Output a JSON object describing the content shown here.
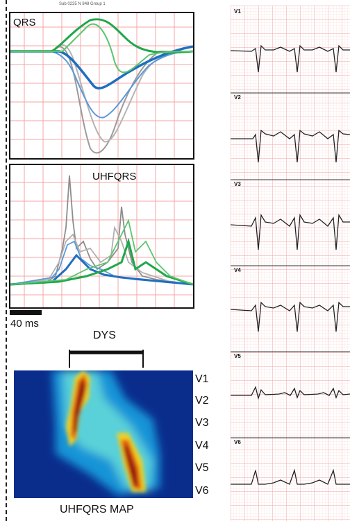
{
  "header": {
    "subject_text": "Sub 0235 N 848 Group 1"
  },
  "panels": {
    "qrs_label": "QRS",
    "uhfqrs_label": "UHFQRS"
  },
  "scale": {
    "label": "40 ms"
  },
  "dys": {
    "label": "DYS"
  },
  "map": {
    "title": "UHFQRS MAP",
    "leads": [
      "V1",
      "V2",
      "V3",
      "V4",
      "V5",
      "V6"
    ]
  },
  "ecg": {
    "leads": [
      "V1",
      "V2",
      "V3",
      "V4",
      "V5",
      "V6"
    ]
  },
  "colors": {
    "grid": "#f4a6a6",
    "trace_green": "#1ea84a",
    "trace_blue": "#1f6fc0",
    "trace_gray": "#9a9a9a",
    "map_bg": "#0a2d8c"
  }
}
